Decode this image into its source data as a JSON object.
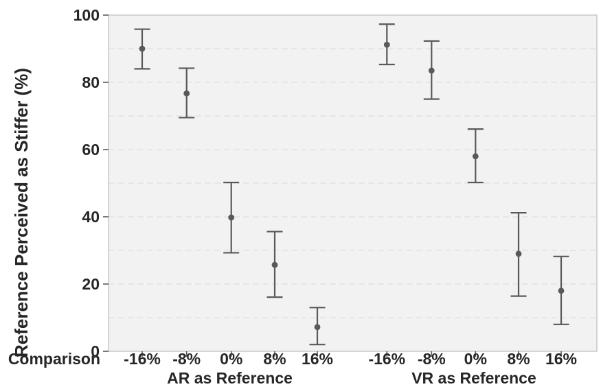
{
  "figure_title": "",
  "chart_data": {
    "type": "scatter",
    "subtype": "point-estimates-with-error-bars",
    "title": "",
    "ylabel": "Reference Perceived as Stiffer (%)",
    "xlabel": "Comparison",
    "ylim": [
      0,
      100
    ],
    "y_ticks": [
      0,
      20,
      40,
      60,
      80,
      100
    ],
    "y_tick_labels": [
      "0",
      "20",
      "40",
      "60",
      "80",
      "100"
    ],
    "grid": {
      "horizontal": true,
      "style": "dashed",
      "interval": 10
    },
    "legend": "none",
    "groups": [
      {
        "label": "AR as Reference",
        "categories": [
          "-16%",
          "-8%",
          "0%",
          "8%",
          "16%"
        ],
        "means": [
          90.0,
          76.7,
          39.8,
          25.7,
          7.2
        ],
        "ci_low": [
          84.0,
          69.5,
          29.3,
          16.1,
          2.0
        ],
        "ci_high": [
          95.8,
          84.2,
          50.2,
          35.6,
          13.0
        ]
      },
      {
        "label": "VR as Reference",
        "categories": [
          "-16%",
          "-8%",
          "0%",
          "8%",
          "16%"
        ],
        "means": [
          91.2,
          83.5,
          58.0,
          29.0,
          18.0
        ],
        "ci_low": [
          85.3,
          75.0,
          50.2,
          16.4,
          8.0
        ],
        "ci_high": [
          97.3,
          92.3,
          66.1,
          41.2,
          28.2
        ]
      }
    ],
    "colors": {
      "point": "#595959",
      "error_bar": "#595959",
      "plot_background": "#f2f2f2",
      "grid_line": "#e0e0e0",
      "frame": "#c4c4c4",
      "tick_mark": "#595959",
      "text": "#262626"
    }
  }
}
